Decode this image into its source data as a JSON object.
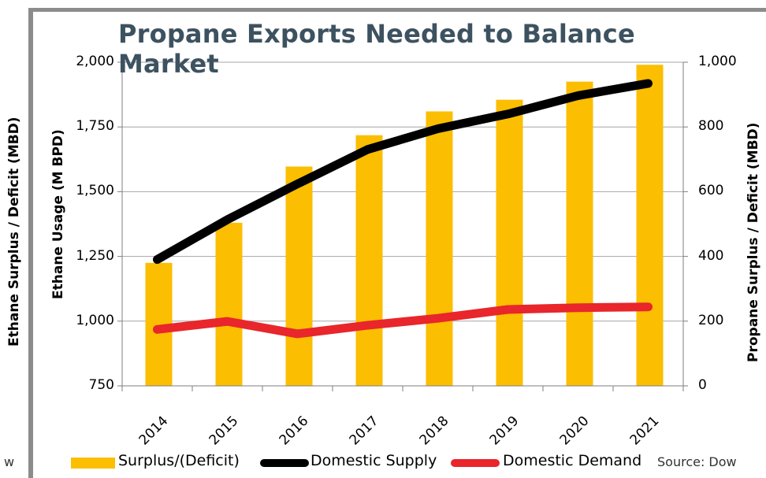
{
  "chart_data": {
    "type": "bar",
    "title": "Propane Exports Needed to Balance Market",
    "categories": [
      "2014",
      "2015",
      "2016",
      "2017",
      "2018",
      "2019",
      "2020",
      "2021"
    ],
    "series": [
      {
        "name": "Surplus/(Deficit)",
        "type": "bar",
        "axis": "left",
        "color": "#fbbe00",
        "values": [
          1225,
          1380,
          1597,
          1718,
          1810,
          1855,
          1925,
          1990
        ]
      },
      {
        "name": "Domestic Supply",
        "type": "line",
        "axis": "left",
        "color": "#000000",
        "values": [
          1238,
          1392,
          1530,
          1663,
          1743,
          1800,
          1871,
          1918
        ]
      },
      {
        "name": "Domestic Demand",
        "type": "line",
        "axis": "left",
        "color": "#e8262b",
        "values": [
          968,
          999,
          951,
          984,
          1011,
          1045,
          1052,
          1055
        ]
      }
    ],
    "ylabel_left": "Ethane Usage (M BPD)",
    "ylabel_right": "Propane Surplus / Deficit (MBD)",
    "ylim_left": [
      750,
      2000
    ],
    "ylim_right": [
      0,
      1000
    ],
    "yticks_left": [
      "750",
      "1,000",
      "1,250",
      "1,500",
      "1,750",
      "2,000"
    ],
    "yticks_right": [
      "0",
      "200",
      "400",
      "600",
      "800",
      "1,000"
    ],
    "grid": true,
    "legend_position": "bottom"
  },
  "outer_ylabel": "Ethane Surplus / Deficit (MBD)",
  "source_text": "Source: Dow",
  "cut_text": "w"
}
